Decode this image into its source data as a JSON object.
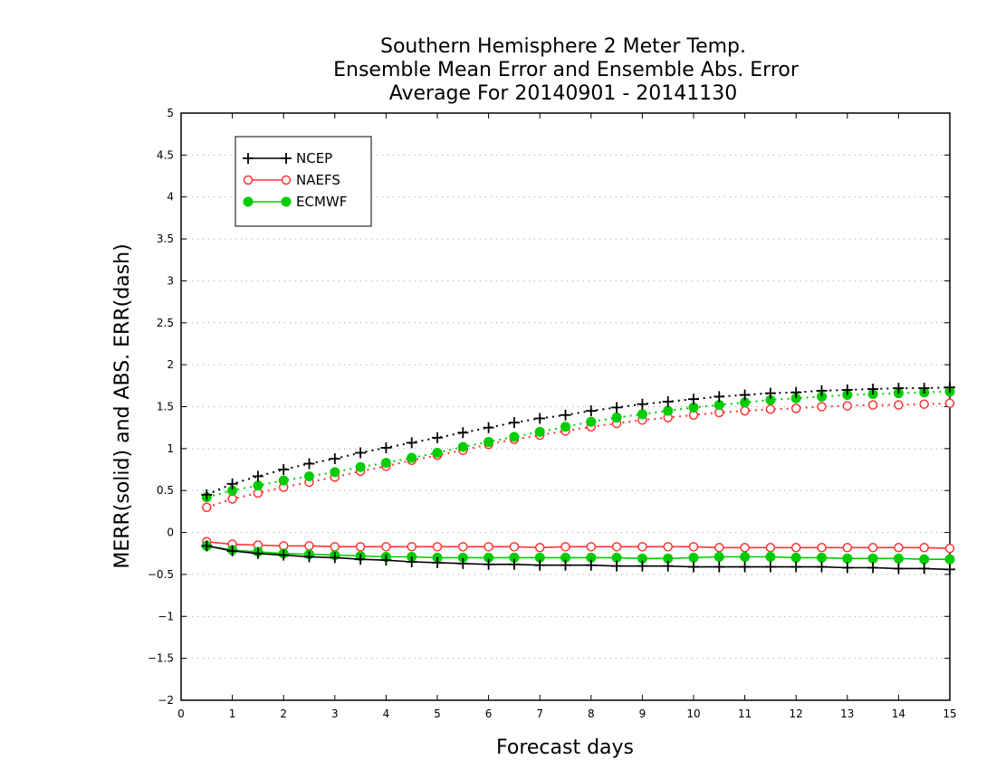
{
  "chart_data": {
    "type": "line",
    "title_lines": [
      "Southern Hemisphere 2 Meter Temp.",
      "Ensemble Mean Error and Ensemble Abs. Error",
      "Average For 20140901 - 20141130"
    ],
    "xlabel": "Forecast days",
    "ylabel": "MERR(solid) and ABS. ERR(dash)",
    "xlim": [
      0,
      15
    ],
    "ylim": [
      -2,
      5
    ],
    "x_ticks": [
      "0",
      "1",
      "2",
      "3",
      "4",
      "5",
      "6",
      "7",
      "8",
      "9",
      "10",
      "11",
      "12",
      "13",
      "14",
      "15"
    ],
    "y_ticks": [
      "-2",
      "-1.5",
      "-1",
      "-0.5",
      "0",
      "0.5",
      "1",
      "1.5",
      "2",
      "2.5",
      "3",
      "3.5",
      "4",
      "4.5",
      "5"
    ],
    "grid": "dotted horizontal",
    "legend_position": "top-left",
    "x": [
      0.5,
      1,
      1.5,
      2,
      2.5,
      3,
      3.5,
      4,
      4.5,
      5,
      5.5,
      6,
      6.5,
      7,
      7.5,
      8,
      8.5,
      9,
      9.5,
      10,
      10.5,
      11,
      11.5,
      12,
      12.5,
      13,
      13.5,
      14,
      14.5,
      15
    ],
    "series": [
      {
        "name": "NCEP",
        "color": "#000000",
        "marker": "plus",
        "abs_err": [
          0.45,
          0.58,
          0.67,
          0.75,
          0.82,
          0.88,
          0.95,
          1.01,
          1.07,
          1.13,
          1.19,
          1.25,
          1.31,
          1.36,
          1.4,
          1.45,
          1.49,
          1.53,
          1.56,
          1.59,
          1.62,
          1.64,
          1.66,
          1.67,
          1.69,
          1.7,
          1.71,
          1.72,
          1.72,
          1.73
        ],
        "mean_err": [
          -0.16,
          -0.22,
          -0.25,
          -0.27,
          -0.29,
          -0.3,
          -0.32,
          -0.33,
          -0.35,
          -0.36,
          -0.37,
          -0.38,
          -0.38,
          -0.39,
          -0.39,
          -0.39,
          -0.4,
          -0.4,
          -0.4,
          -0.41,
          -0.41,
          -0.41,
          -0.41,
          -0.41,
          -0.41,
          -0.42,
          -0.42,
          -0.43,
          -0.43,
          -0.44
        ]
      },
      {
        "name": "NAEFS",
        "color": "#ff3333",
        "marker": "open-circle",
        "abs_err": [
          0.3,
          0.4,
          0.47,
          0.54,
          0.6,
          0.66,
          0.73,
          0.79,
          0.86,
          0.92,
          0.98,
          1.05,
          1.11,
          1.16,
          1.21,
          1.26,
          1.3,
          1.34,
          1.37,
          1.4,
          1.43,
          1.45,
          1.47,
          1.48,
          1.5,
          1.51,
          1.52,
          1.52,
          1.53,
          1.54
        ],
        "mean_err": [
          -0.11,
          -0.14,
          -0.15,
          -0.16,
          -0.16,
          -0.17,
          -0.17,
          -0.17,
          -0.17,
          -0.17,
          -0.17,
          -0.17,
          -0.17,
          -0.18,
          -0.17,
          -0.17,
          -0.17,
          -0.17,
          -0.17,
          -0.17,
          -0.18,
          -0.18,
          -0.18,
          -0.18,
          -0.18,
          -0.18,
          -0.18,
          -0.18,
          -0.18,
          -0.19
        ]
      },
      {
        "name": "ECMWF",
        "color": "#00cc00",
        "marker": "filled-circle",
        "abs_err": [
          0.42,
          0.5,
          0.56,
          0.62,
          0.67,
          0.72,
          0.78,
          0.83,
          0.89,
          0.95,
          1.02,
          1.08,
          1.14,
          1.2,
          1.26,
          1.32,
          1.37,
          1.41,
          1.45,
          1.49,
          1.52,
          1.55,
          1.58,
          1.6,
          1.62,
          1.64,
          1.65,
          1.66,
          1.67,
          1.68
        ],
        "mean_err": [
          -0.16,
          -0.21,
          -0.23,
          -0.25,
          -0.26,
          -0.27,
          -0.28,
          -0.29,
          -0.29,
          -0.3,
          -0.3,
          -0.3,
          -0.3,
          -0.3,
          -0.3,
          -0.3,
          -0.3,
          -0.31,
          -0.31,
          -0.3,
          -0.29,
          -0.29,
          -0.29,
          -0.3,
          -0.3,
          -0.31,
          -0.31,
          -0.31,
          -0.32,
          -0.32
        ]
      }
    ]
  }
}
